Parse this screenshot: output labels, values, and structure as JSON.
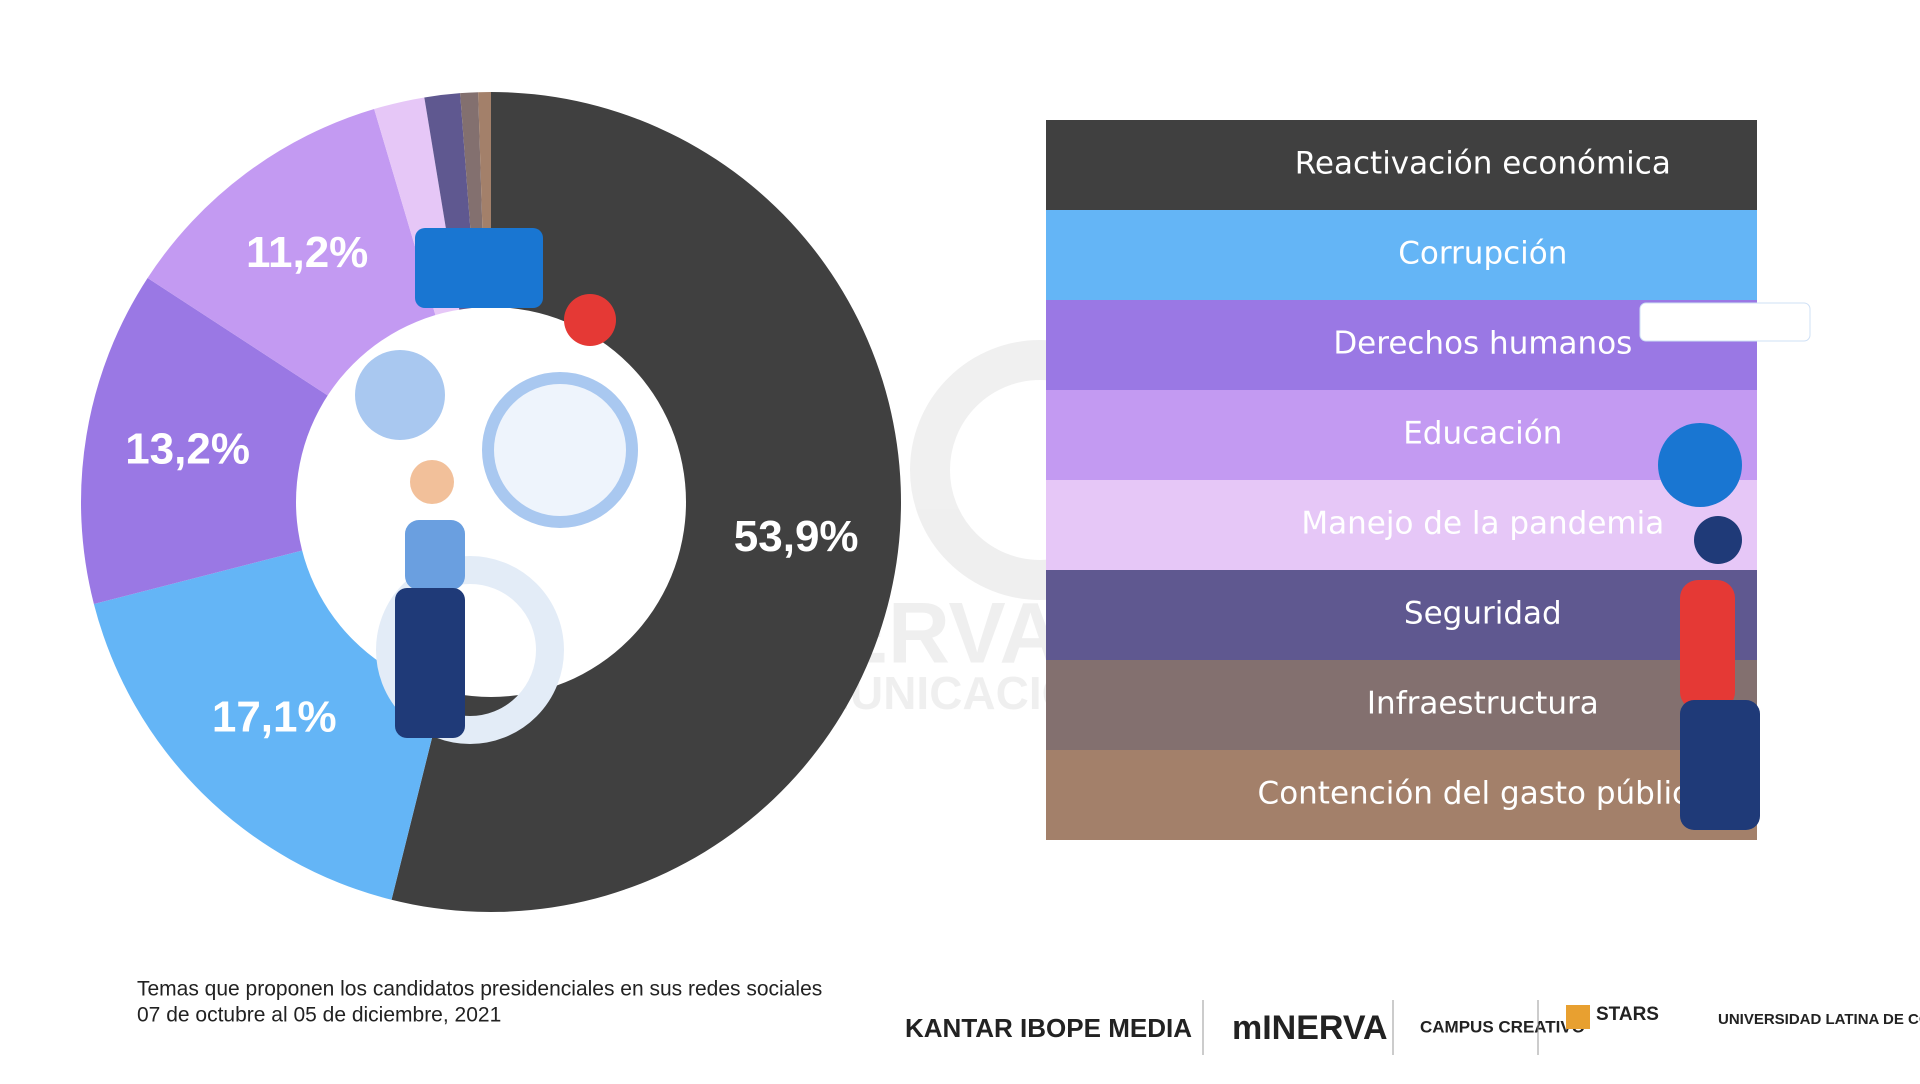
{
  "chart_data": {
    "type": "pie",
    "categories": [
      "Reactivación económica",
      "Corrupción",
      "Derechos humanos",
      "Educación",
      "Manejo de la pandemia",
      "Seguridad",
      "Infraestructura",
      "Contención del gasto público"
    ],
    "values": [
      53.9,
      17.1,
      13.2,
      11.2,
      2.0,
      1.4,
      0.7,
      0.5
    ],
    "value_labels": [
      "53,9%",
      "17,1%",
      "13,2%",
      "11,2%",
      null,
      null,
      null,
      null
    ],
    "colors": [
      "#404040",
      "#64b5f6",
      "#9a78e4",
      "#c39af2",
      "#e6c7f7",
      "#5f5890",
      "#83706f",
      "#a3806a"
    ]
  },
  "caption": [
    "Temas que proponen los candidatos presidenciales en sus redes sociales",
    "07 de octubre al 05 de diciembre, 2021"
  ],
  "watermark": [
    "OBSERVATORIO",
    "DE COMUNICACIÓN DIGITAL"
  ],
  "logos": [
    "KANTAR IBOPE MEDIA",
    "mINERVA",
    "CAMPUS CREATIVO",
    "STARS",
    "UNIVERSIDAD LATINA DE COSTA RICA"
  ]
}
